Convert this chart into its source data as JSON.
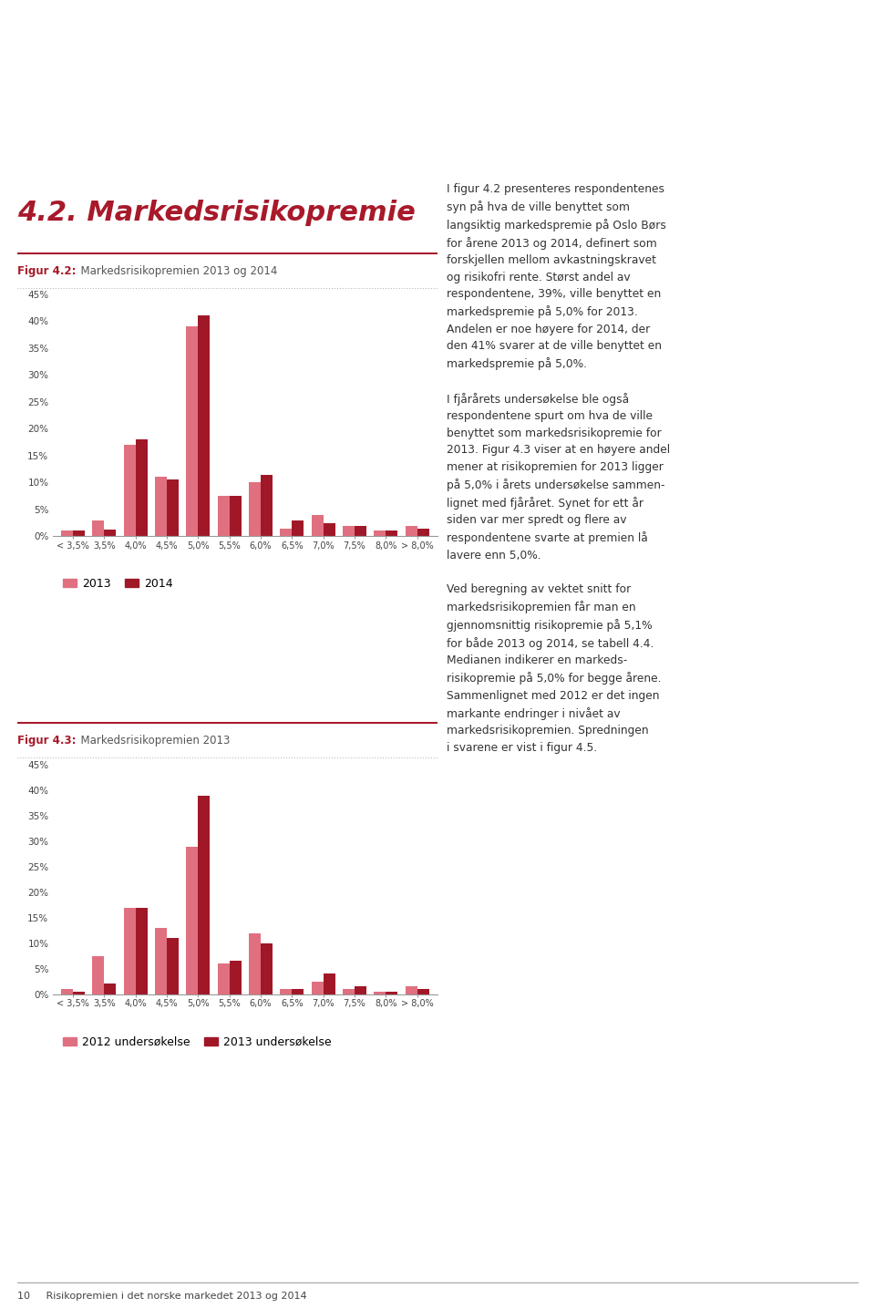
{
  "fig1_title_bold": "Figur 4.2:",
  "fig1_title_rest": "  Markedsrisikopremien 2013 og 2014",
  "fig2_title_bold": "Figur 4.3:",
  "fig2_title_rest": "  Markedsrisikopremien 2013",
  "categories1": [
    "< 3,5%",
    "3,5%",
    "4,0%",
    "4,5%",
    "5,0%",
    "5,5%",
    "6,0%",
    "6,5%",
    "7,0%",
    "7,5%",
    "8,0%",
    "> 8,0%"
  ],
  "categories2": [
    "< 3,5%",
    "3,5%",
    "4,0%",
    "4,5%",
    "5,0%",
    "5,5%",
    "6,0%",
    "6,5%",
    "7,0%",
    "7,5%",
    "8,0%",
    "> 8,0%"
  ],
  "chart1_2013": [
    1.0,
    3.0,
    17.0,
    11.0,
    39.0,
    7.5,
    10.0,
    1.5,
    4.0,
    2.0,
    1.0,
    2.0
  ],
  "chart1_2014": [
    1.0,
    1.2,
    18.0,
    10.5,
    41.0,
    7.5,
    11.5,
    3.0,
    2.5,
    2.0,
    1.0,
    1.5
  ],
  "chart2_2012": [
    1.0,
    7.5,
    17.0,
    13.0,
    29.0,
    6.0,
    12.0,
    1.0,
    2.5,
    1.0,
    0.5,
    1.5
  ],
  "chart2_2013": [
    0.5,
    2.0,
    17.0,
    11.0,
    39.0,
    6.5,
    10.0,
    1.0,
    4.0,
    1.5,
    0.5,
    1.0
  ],
  "color_2013_c1": "#e07080",
  "color_2014_c1": "#a01828",
  "color_2012_c2": "#e07080",
  "color_2013_c2": "#a01828",
  "header_bg_color": "#a8192a",
  "header_text_41": "41%",
  "header_text_ville": "ville benyttet",
  "header_text_en": "en markedspremie på",
  "header_text_5": "5%",
  "header_text_for": "for 2014",
  "section_title": "4.2. Markedsrisikopremie",
  "ylim": [
    0,
    45
  ],
  "yticks": [
    0,
    5,
    10,
    15,
    20,
    25,
    30,
    35,
    40,
    45
  ],
  "ytick_labels": [
    "0%",
    "5%",
    "10%",
    "15%",
    "20%",
    "25%",
    "30%",
    "35%",
    "40%",
    "45%"
  ],
  "legend1_labels": [
    "2013",
    "2014"
  ],
  "legend2_labels": [
    "2012 undersøkelse",
    "2013 undersøkelse"
  ],
  "body_text_lines": [
    "I figur 4.2 presenteres respondentenes",
    "syn på hva de ville benyttet som",
    "langsiktig markedspremie på Oslo Børs",
    "for årene 2013 og 2014, definert som",
    "forskjellen mellom avkastningskravet",
    "og risikofri rente. Størst andel av",
    "respondentene, 39%, ville benyttet en",
    "markedspremie på 5,0% for 2013.",
    "Andelen er noe høyere for 2014, der",
    "den 41% svarer at de ville benyttet en",
    "markedspremie på 5,0%.",
    "",
    "I fjårårets undersøkelse ble også",
    "respondentene spurt om hva de ville",
    "benyttet som markedsrisikopremie for",
    "2013. Figur 4.3 viser at en høyere andel",
    "mener at risikopremien for 2013 ligger",
    "på 5,0% i årets undersøkelse sammen-",
    "lignet med fjåråret. Synet for ett år",
    "siden var mer spredt og flere av",
    "respondentene svarte at premien lå",
    "lavere enn 5,0%.",
    "",
    "Ved beregning av vektet snitt for",
    "markedsrisikopremien får man en",
    "gjennomsnittig risikopremie på 5,1%",
    "for både 2013 og 2014, se tabell 4.4.",
    "Medianen indikerer en markeds-",
    "risikopremie på 5,0% for begge årene.",
    "Sammenlignet med 2012 er det ingen",
    "markante endringer i nivået av",
    "markedsrisikopremien. Spredningen",
    "i svarene er vist i figur 4.5."
  ],
  "footer_text": "10     Risikopremien i det norske markedet 2013 og 2014",
  "accent_color": "#a8192a",
  "bg_color": "#ffffff"
}
